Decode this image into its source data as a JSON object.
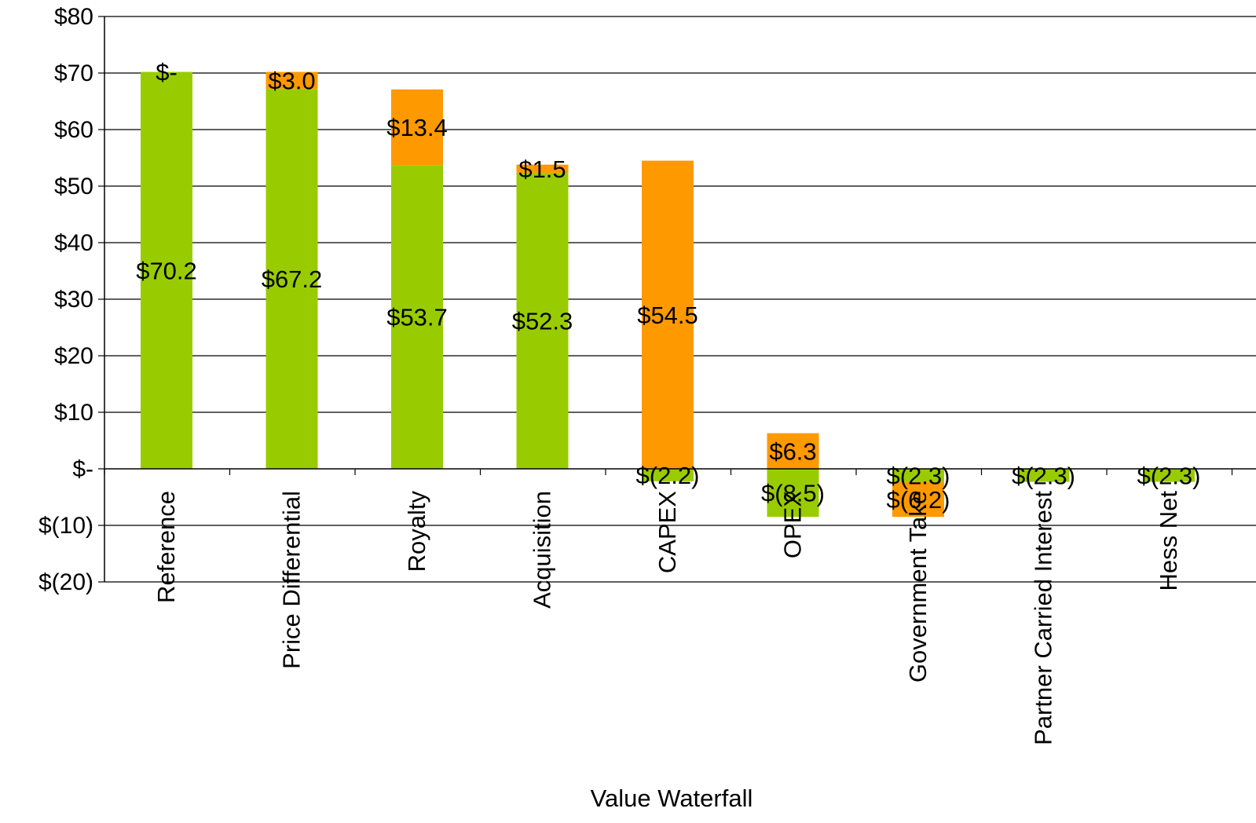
{
  "chart_data": {
    "type": "bar",
    "stacked": true,
    "title": "",
    "xlabel": "Value Waterfall",
    "ylabel": "",
    "ylim": [
      -20,
      80
    ],
    "y_ticks": [
      80,
      70,
      60,
      50,
      40,
      30,
      20,
      10,
      0,
      -10,
      -20
    ],
    "y_tick_labels": [
      "$80",
      "$70",
      "$60",
      "$50",
      "$40",
      "$30",
      "$20",
      "$10",
      "$-",
      "$(10)",
      "$(20)"
    ],
    "grid": "horizontal",
    "legend": "none",
    "categories": [
      "Reference",
      "Price Differential",
      "Royalty",
      "Acquisition",
      "CAPEX",
      "OPEX",
      "Government Take",
      "Partner Carried Interest",
      "Hess Net"
    ],
    "series": [
      {
        "color": "#99cc00",
        "values": [
          70.2,
          67.2,
          53.7,
          52.3,
          -2.2,
          -8.5,
          -2.3,
          -2.3,
          -2.3
        ],
        "labels": [
          "$70.2",
          "$67.2",
          "$53.7",
          "$52.3",
          "$(2.2)",
          "$(8.5)",
          "$(2.3)",
          "$(2.3)",
          "$(2.3)"
        ]
      },
      {
        "color": "#ff9900",
        "values": [
          0,
          3.0,
          13.4,
          1.5,
          54.5,
          6.3,
          -6.2,
          0,
          0
        ],
        "labels": [
          "$-",
          "$3.0",
          "$13.4",
          "$1.5",
          "$54.5",
          "$6.3",
          "$(6.2)",
          "",
          ""
        ]
      }
    ]
  }
}
